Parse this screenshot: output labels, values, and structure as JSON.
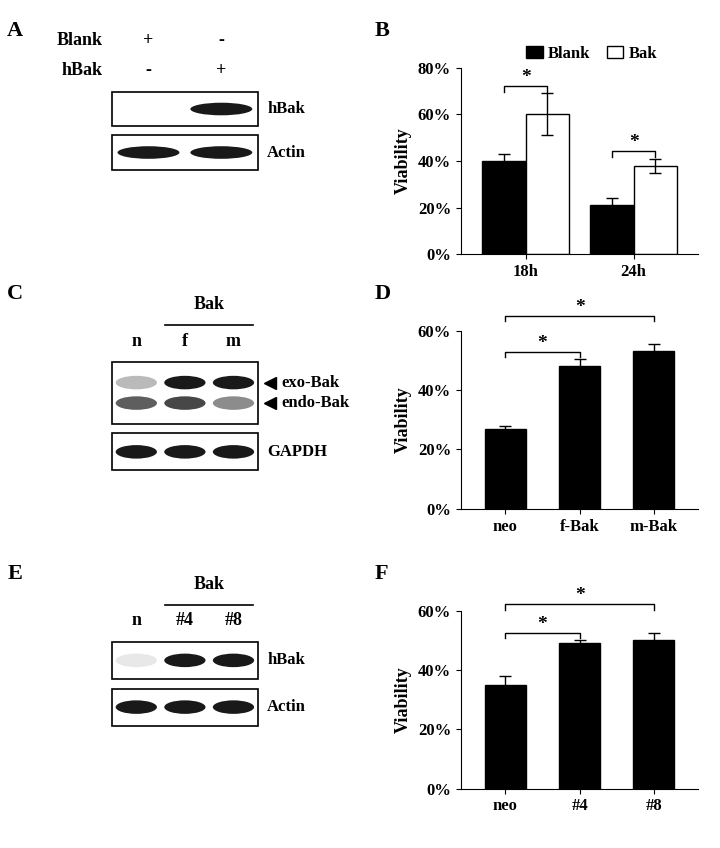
{
  "chart_data": [
    {
      "panel": "B",
      "type": "bar",
      "y_label": "Viability",
      "categories": [
        "18h",
        "24h"
      ],
      "series": [
        {
          "name": "Blank",
          "color": "#000000",
          "values": [
            40,
            21
          ],
          "errors": [
            3,
            3
          ]
        },
        {
          "name": "Bak",
          "color": "#ffffff",
          "values": [
            60,
            38
          ],
          "errors": [
            9,
            3
          ]
        }
      ],
      "ylim": [
        0,
        80
      ],
      "yticks": [
        {
          "value": 0,
          "label": "0%"
        },
        {
          "value": 20,
          "label": "20%"
        },
        {
          "value": 40,
          "label": "40%"
        },
        {
          "value": 60,
          "label": "60%"
        },
        {
          "value": 80,
          "label": "80%"
        }
      ],
      "legend": "upper center",
      "significance": [
        {
          "label": "*",
          "category": "18h"
        },
        {
          "label": "*",
          "category": "24h"
        }
      ]
    },
    {
      "panel": "D",
      "type": "bar",
      "y_label": "Viability",
      "categories": [
        "neo",
        "f-Bak",
        "m-Bak"
      ],
      "values": [
        27,
        48,
        53
      ],
      "errors": [
        1,
        2.5,
        2.5
      ],
      "color": "#000000",
      "ylim": [
        0,
        60
      ],
      "yticks": [
        {
          "value": 0,
          "label": "0%"
        },
        {
          "value": 20,
          "label": "20%"
        },
        {
          "value": 40,
          "label": "40%"
        },
        {
          "value": 60,
          "label": "60%"
        }
      ],
      "significance": [
        {
          "label": "*",
          "from": "neo",
          "to": "f-Bak"
        },
        {
          "label": "*",
          "from": "neo",
          "to": "m-Bak"
        }
      ]
    },
    {
      "panel": "F",
      "type": "bar",
      "y_label": "Viability",
      "categories": [
        "neo",
        "#4",
        "#8"
      ],
      "values": [
        35,
        49,
        50
      ],
      "errors": [
        3,
        1,
        2.5
      ],
      "color": "#000000",
      "ylim": [
        0,
        60
      ],
      "yticks": [
        {
          "value": 0,
          "label": "0%"
        },
        {
          "value": 20,
          "label": "20%"
        },
        {
          "value": 40,
          "label": "40%"
        },
        {
          "value": 60,
          "label": "60%"
        }
      ],
      "significance": [
        {
          "label": "*",
          "from": "neo",
          "to": "#4"
        },
        {
          "label": "*",
          "from": "neo",
          "to": "#8"
        }
      ]
    }
  ],
  "blots": [
    {
      "panel": "A",
      "header_rows": [
        {
          "label": "Blank",
          "marks": [
            "+",
            "-"
          ]
        },
        {
          "label": "hBak",
          "marks": [
            "-",
            "+"
          ]
        }
      ],
      "boxes": [
        {
          "bands": [
            {
              "label": "hBak",
              "intensity": [
                0,
                1
              ]
            }
          ]
        },
        {
          "bands": [
            {
              "label": "Actin",
              "intensity": [
                1,
                1
              ]
            }
          ]
        }
      ]
    },
    {
      "panel": "C",
      "group": {
        "label": "Bak",
        "lanes": [
          1,
          2
        ]
      },
      "lane_labels": [
        "n",
        "f",
        "m"
      ],
      "boxes": [
        {
          "bands": [
            {
              "label": "exo-Bak",
              "intensity": [
                0.3,
                1,
                1
              ],
              "arrow": true
            },
            {
              "label": "endo-Bak",
              "intensity": [
                0.7,
                0.8,
                0.5
              ],
              "arrow": true
            }
          ]
        },
        {
          "bands": [
            {
              "label": "GAPDH",
              "intensity": [
                1,
                1,
                1
              ]
            }
          ]
        }
      ]
    },
    {
      "panel": "E",
      "group": {
        "label": "Bak",
        "lanes": [
          1,
          2
        ]
      },
      "lane_labels": [
        "n",
        "#4",
        "#8"
      ],
      "boxes": [
        {
          "bands": [
            {
              "label": "hBak",
              "intensity": [
                0.1,
                1,
                1
              ]
            }
          ]
        },
        {
          "bands": [
            {
              "label": "Actin",
              "intensity": [
                1,
                1,
                1
              ]
            }
          ]
        }
      ]
    }
  ]
}
